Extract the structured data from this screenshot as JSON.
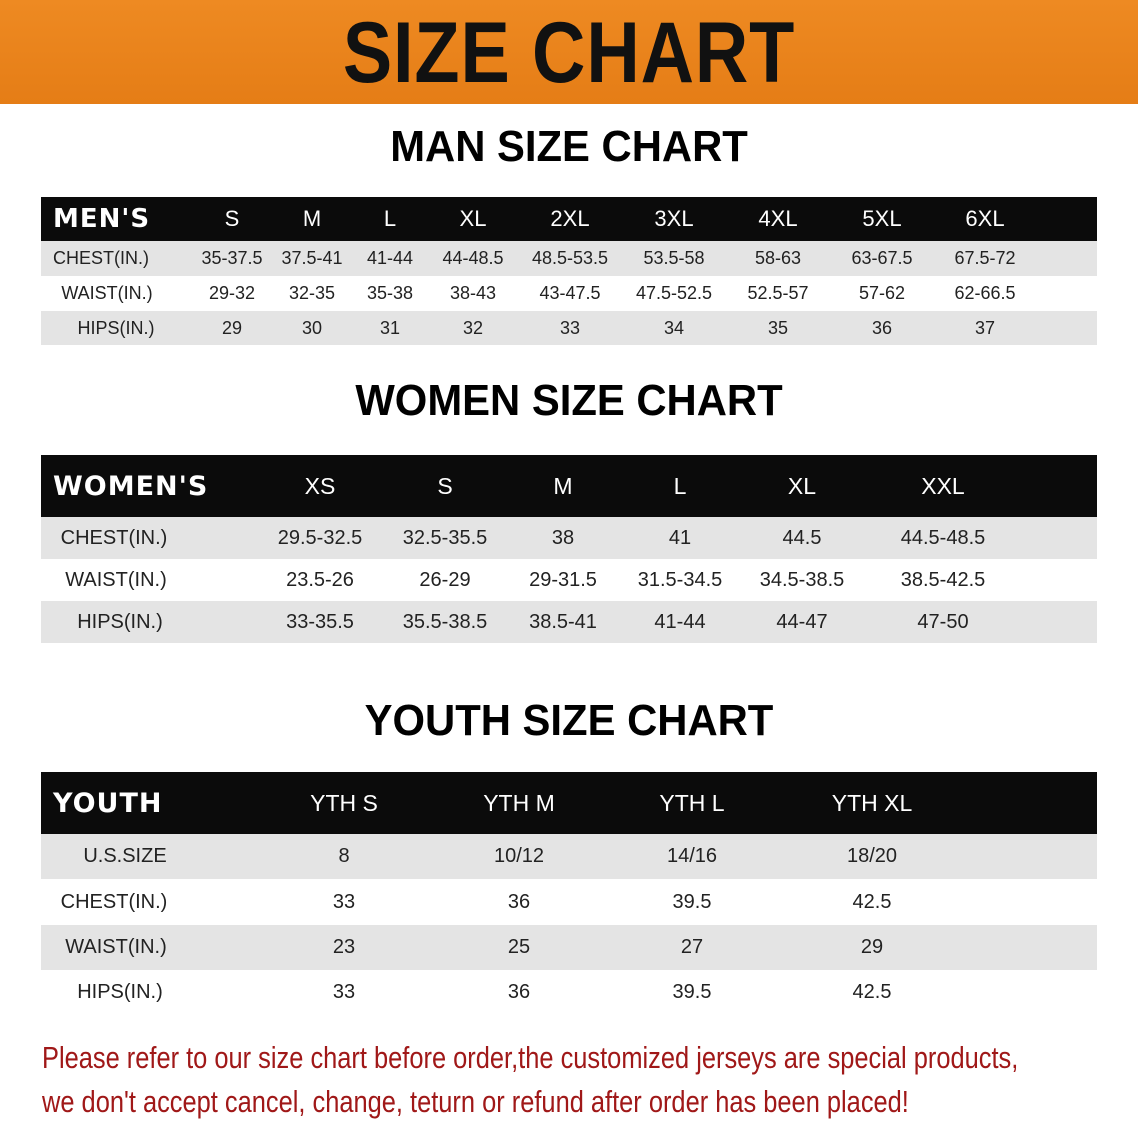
{
  "banner": {
    "title": "SIZE CHART",
    "color": "#e8841c"
  },
  "men": {
    "title": "MAN SIZE CHART",
    "header": [
      "MEN'S",
      "S",
      "M",
      "L",
      "XL",
      "2XL",
      "3XL",
      "4XL",
      "5XL",
      "6XL"
    ],
    "rows": [
      [
        "CHEST(IN.)",
        "35-37.5",
        "37.5-41",
        "41-44",
        "44-48.5",
        "48.5-53.5",
        "53.5-58",
        "58-63",
        "63-67.5",
        "67.5-72"
      ],
      [
        "WAIST(IN.)",
        "29-32",
        "32-35",
        "35-38",
        "38-43",
        "43-47.5",
        "47.5-52.5",
        "52.5-57",
        "57-62",
        "62-66.5"
      ],
      [
        "HIPS(IN.)",
        "29",
        "30",
        "31",
        "32",
        "33",
        "34",
        "35",
        "36",
        "37"
      ]
    ]
  },
  "women": {
    "title": "WOMEN SIZE CHART",
    "header": [
      "WOMEN'S",
      "XS",
      "S",
      "M",
      "L",
      "XL",
      "XXL"
    ],
    "rows": [
      [
        "CHEST(IN.)",
        "29.5-32.5",
        "32.5-35.5",
        "38",
        "41",
        "44.5",
        "44.5-48.5"
      ],
      [
        "WAIST(IN.)",
        "23.5-26",
        "26-29",
        "29-31.5",
        "31.5-34.5",
        "34.5-38.5",
        "38.5-42.5"
      ],
      [
        "HIPS(IN.)",
        "33-35.5",
        "35.5-38.5",
        "38.5-41",
        "41-44",
        "44-47",
        "47-50"
      ]
    ]
  },
  "youth": {
    "title": "YOUTH SIZE CHART",
    "header": [
      "YOUTH",
      "YTH S",
      "YTH M",
      "YTH L",
      "YTH XL"
    ],
    "rows": [
      [
        "U.S.SIZE",
        "8",
        "10/12",
        "14/16",
        "18/20"
      ],
      [
        "CHEST(IN.)",
        "33",
        "36",
        "39.5",
        "42.5"
      ],
      [
        "WAIST(IN.)",
        "23",
        "25",
        "27",
        "29"
      ],
      [
        "HIPS(IN.)",
        "33",
        "36",
        "39.5",
        "42.5"
      ]
    ]
  },
  "note": {
    "line1": "Please refer to our size chart before order,the customized jerseys are special products,",
    "line2": "we don't accept cancel, change, teturn or refund after order has been placed!",
    "color": "#a01818"
  }
}
